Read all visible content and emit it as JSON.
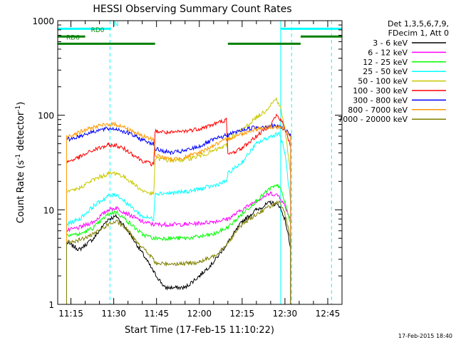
{
  "chart_data": {
    "type": "line",
    "title": "HESSI Observing Summary Count Rates",
    "xlabel": "Start Time (17-Feb-15 11:10:22)",
    "ylabel_main": "Count Rate (s",
    "ylabel_sup1": "-1",
    "ylabel_mid": " detector",
    "ylabel_sup2": "-1",
    "ylabel_end": ")",
    "yscale": "log",
    "xlim": [
      "11:10:22",
      "12:50:00"
    ],
    "ylim": [
      1,
      1000
    ],
    "x_ticks": [
      "11:15",
      "11:30",
      "11:45",
      "12:00",
      "12:15",
      "12:30",
      "12:45"
    ],
    "y_ticks": [
      "1",
      "10",
      "100",
      "1000"
    ],
    "legend_header": [
      "Det 1,3,5,6,7,9,",
      "FDecim 1, Att 0"
    ],
    "footer": "17-Feb-2015 18:40",
    "vlines_solid": [
      "11:10:22",
      "12:28:30"
    ],
    "vlines_dashed": [
      "11:28:40",
      "12:32:20",
      "12:46:20"
    ],
    "orbit_bars": [
      {
        "label": "N",
        "color": "#00ffff",
        "y": 820,
        "segments": [
          [
            "11:10:22",
            "11:29:00"
          ],
          [
            "12:28:30",
            "12:50:00"
          ]
        ]
      },
      {
        "label": "RD0",
        "color": "#008000",
        "y": 680,
        "segments": [
          [
            "11:10:22",
            "11:20:00"
          ],
          [
            "12:35:30",
            "12:50:00"
          ]
        ]
      },
      {
        "label": "RD6",
        "color": "#008000",
        "y": 570,
        "segments": [
          [
            "11:10:22",
            "11:44:30"
          ],
          [
            "12:10:00",
            "12:35:30"
          ]
        ]
      }
    ],
    "series": [
      {
        "name": "3 - 6 keV",
        "color": "#000000",
        "points": [
          [
            "11:13:30",
            4.5
          ],
          [
            "11:18:00",
            3.8
          ],
          [
            "11:23:00",
            5.0
          ],
          [
            "11:28:00",
            8.0
          ],
          [
            "11:31:00",
            8.5
          ],
          [
            "11:35:00",
            6.0
          ],
          [
            "11:40:00",
            3.5
          ],
          [
            "11:44:00",
            2.2
          ],
          [
            "11:48:00",
            1.5
          ],
          [
            "11:55:00",
            1.5
          ],
          [
            "12:00:00",
            2.0
          ],
          [
            "12:05:00",
            2.8
          ],
          [
            "12:10:00",
            4.5
          ],
          [
            "12:15:00",
            7.5
          ],
          [
            "12:20:00",
            10.0
          ],
          [
            "12:25:00",
            12.0
          ],
          [
            "12:28:00",
            11.0
          ],
          [
            "12:30:00",
            8.0
          ],
          [
            "12:32:00",
            4.0
          ]
        ]
      },
      {
        "name": "6 - 12 keV",
        "color": "#ff00ff",
        "points": [
          [
            "11:13:30",
            6.0
          ],
          [
            "11:18:00",
            6.5
          ],
          [
            "11:23:00",
            7.5
          ],
          [
            "11:28:00",
            10.0
          ],
          [
            "11:31:00",
            10.5
          ],
          [
            "11:35:00",
            9.0
          ],
          [
            "11:40:00",
            7.5
          ],
          [
            "11:44:00",
            7.0
          ],
          [
            "11:48:00",
            7.0
          ],
          [
            "11:55:00",
            7.0
          ],
          [
            "12:00:00",
            7.2
          ],
          [
            "12:05:00",
            7.5
          ],
          [
            "12:10:00",
            8.0
          ],
          [
            "12:15:00",
            10.0
          ],
          [
            "12:20:00",
            12.5
          ],
          [
            "12:25:00",
            15.0
          ],
          [
            "12:28:00",
            14.0
          ],
          [
            "12:30:00",
            11.0
          ],
          [
            "12:32:00",
            8.0
          ]
        ]
      },
      {
        "name": "12 - 25 keV",
        "color": "#00ff00",
        "points": [
          [
            "11:13:30",
            5.5
          ],
          [
            "11:18:00",
            5.5
          ],
          [
            "11:23:00",
            6.5
          ],
          [
            "11:28:00",
            9.0
          ],
          [
            "11:31:00",
            9.5
          ],
          [
            "11:35:00",
            7.5
          ],
          [
            "11:40:00",
            5.5
          ],
          [
            "11:44:00",
            5.0
          ],
          [
            "11:48:00",
            5.0
          ],
          [
            "11:55:00",
            5.0
          ],
          [
            "12:00:00",
            5.2
          ],
          [
            "12:05:00",
            5.5
          ],
          [
            "12:10:00",
            6.5
          ],
          [
            "12:15:00",
            9.0
          ],
          [
            "12:20:00",
            12.5
          ],
          [
            "12:25:00",
            17.0
          ],
          [
            "12:28:00",
            18.0
          ],
          [
            "12:30:00",
            12.0
          ],
          [
            "12:32:00",
            7.0
          ]
        ]
      },
      {
        "name": "25 - 50 keV",
        "color": "#00ffff",
        "points": [
          [
            "11:13:30",
            7.0
          ],
          [
            "11:18:00",
            8.0
          ],
          [
            "11:23:00",
            11.0
          ],
          [
            "11:28:00",
            14.0
          ],
          [
            "11:31:00",
            14.5
          ],
          [
            "11:35:00",
            11.5
          ],
          [
            "11:40:00",
            8.5
          ],
          [
            "11:44:00",
            8.0
          ],
          [
            "11:44:30",
            15.0
          ],
          [
            "11:50:00",
            15.0
          ],
          [
            "11:55:00",
            15.5
          ],
          [
            "12:00:00",
            16.5
          ],
          [
            "12:05:00",
            18.0
          ],
          [
            "12:09:30",
            20.0
          ],
          [
            "12:10:00",
            24.0
          ],
          [
            "12:15:00",
            32.0
          ],
          [
            "12:20:00",
            50.0
          ],
          [
            "12:25:00",
            60.0
          ],
          [
            "12:28:00",
            65.0
          ],
          [
            "12:30:00",
            40.0
          ],
          [
            "12:32:00",
            12.0
          ]
        ]
      },
      {
        "name": "50 - 100 keV",
        "color": "#c8c800",
        "points": [
          [
            "11:13:30",
            15.0
          ],
          [
            "11:18:00",
            17.0
          ],
          [
            "11:23:00",
            21.0
          ],
          [
            "11:28:00",
            24.0
          ],
          [
            "11:31:00",
            24.5
          ],
          [
            "11:35:00",
            21.0
          ],
          [
            "11:40:00",
            16.0
          ],
          [
            "11:44:00",
            14.5
          ],
          [
            "11:44:30",
            35.0
          ],
          [
            "11:50:00",
            33.0
          ],
          [
            "11:55:00",
            34.0
          ],
          [
            "12:00:00",
            37.0
          ],
          [
            "12:05:00",
            42.0
          ],
          [
            "12:09:30",
            48.0
          ],
          [
            "12:10:00",
            56.0
          ],
          [
            "12:15:00",
            70.0
          ],
          [
            "12:20:00",
            95.0
          ],
          [
            "12:23:00",
            110.0
          ],
          [
            "12:25:00",
            130.0
          ],
          [
            "12:27:00",
            150.0
          ],
          [
            "12:28:30",
            120.0
          ],
          [
            "12:30:00",
            70.0
          ],
          [
            "12:32:00",
            25.0
          ]
        ]
      },
      {
        "name": "100 - 300 keV",
        "color": "#ff0000",
        "points": [
          [
            "11:13:30",
            32.0
          ],
          [
            "11:18:00",
            36.0
          ],
          [
            "11:23:00",
            43.0
          ],
          [
            "11:28:00",
            48.0
          ],
          [
            "11:31:00",
            48.0
          ],
          [
            "11:35:00",
            42.0
          ],
          [
            "11:40:00",
            33.0
          ],
          [
            "11:44:00",
            30.0
          ],
          [
            "11:44:30",
            68.0
          ],
          [
            "11:50:00",
            65.0
          ],
          [
            "11:55:00",
            68.0
          ],
          [
            "12:00:00",
            72.0
          ],
          [
            "12:05:00",
            80.0
          ],
          [
            "12:09:30",
            90.0
          ],
          [
            "12:10:00",
            38.0
          ],
          [
            "12:15:00",
            45.0
          ],
          [
            "12:20:00",
            60.0
          ],
          [
            "12:25:00",
            80.0
          ],
          [
            "12:27:00",
            100.0
          ],
          [
            "12:29:00",
            85.0
          ],
          [
            "12:31:00",
            60.0
          ],
          [
            "12:32:00",
            45.0
          ]
        ]
      },
      {
        "name": "300 - 800 keV",
        "color": "#0000ff",
        "points": [
          [
            "11:13:30",
            55.0
          ],
          [
            "11:18:00",
            60.0
          ],
          [
            "11:23:00",
            68.0
          ],
          [
            "11:28:00",
            72.0
          ],
          [
            "11:31:00",
            72.0
          ],
          [
            "11:35:00",
            65.0
          ],
          [
            "11:40:00",
            55.0
          ],
          [
            "11:44:00",
            50.0
          ],
          [
            "11:44:30",
            44.0
          ],
          [
            "11:50:00",
            40.0
          ],
          [
            "11:55:00",
            42.0
          ],
          [
            "12:00:00",
            47.0
          ],
          [
            "12:05:00",
            55.0
          ],
          [
            "12:10:00",
            62.0
          ],
          [
            "12:15:00",
            70.0
          ],
          [
            "12:20:00",
            75.0
          ],
          [
            "12:25:00",
            77.0
          ],
          [
            "12:28:00",
            76.0
          ],
          [
            "12:30:00",
            70.0
          ],
          [
            "12:32:00",
            62.0
          ]
        ]
      },
      {
        "name": "800 - 7000 keV",
        "color": "#ff9900",
        "points": [
          [
            "11:13:30",
            60.0
          ],
          [
            "11:18:00",
            66.0
          ],
          [
            "11:23:00",
            75.0
          ],
          [
            "11:28:00",
            80.0
          ],
          [
            "11:31:00",
            80.0
          ],
          [
            "11:35:00",
            72.0
          ],
          [
            "11:40:00",
            60.0
          ],
          [
            "11:44:00",
            55.0
          ],
          [
            "11:44:30",
            38.0
          ],
          [
            "11:50:00",
            34.0
          ],
          [
            "11:55:00",
            36.0
          ],
          [
            "12:00:00",
            40.0
          ],
          [
            "12:05:00",
            48.0
          ],
          [
            "12:10:00",
            56.0
          ],
          [
            "12:15:00",
            64.0
          ],
          [
            "12:20:00",
            72.0
          ],
          [
            "12:25:00",
            75.0
          ],
          [
            "12:28:00",
            74.0
          ],
          [
            "12:30:00",
            70.0
          ],
          [
            "12:32:00",
            60.0
          ]
        ]
      },
      {
        "name": "7000 - 20000 keV",
        "color": "#808000",
        "points": [
          [
            "11:13:30",
            4.5
          ],
          [
            "11:18:00",
            4.8
          ],
          [
            "11:23:00",
            5.5
          ],
          [
            "11:28:00",
            7.0
          ],
          [
            "11:31:00",
            7.5
          ],
          [
            "11:35:00",
            6.0
          ],
          [
            "11:40:00",
            4.0
          ],
          [
            "11:44:00",
            3.0
          ],
          [
            "11:44:30",
            2.7
          ],
          [
            "11:55:00",
            2.7
          ],
          [
            "12:00:00",
            2.8
          ],
          [
            "12:05:00",
            3.2
          ],
          [
            "12:10:00",
            4.5
          ],
          [
            "12:15:00",
            7.0
          ],
          [
            "12:20:00",
            9.0
          ],
          [
            "12:25:00",
            11.0
          ],
          [
            "12:28:00",
            12.0
          ],
          [
            "12:30:00",
            9.0
          ],
          [
            "12:32:00",
            5.0
          ]
        ]
      }
    ]
  }
}
